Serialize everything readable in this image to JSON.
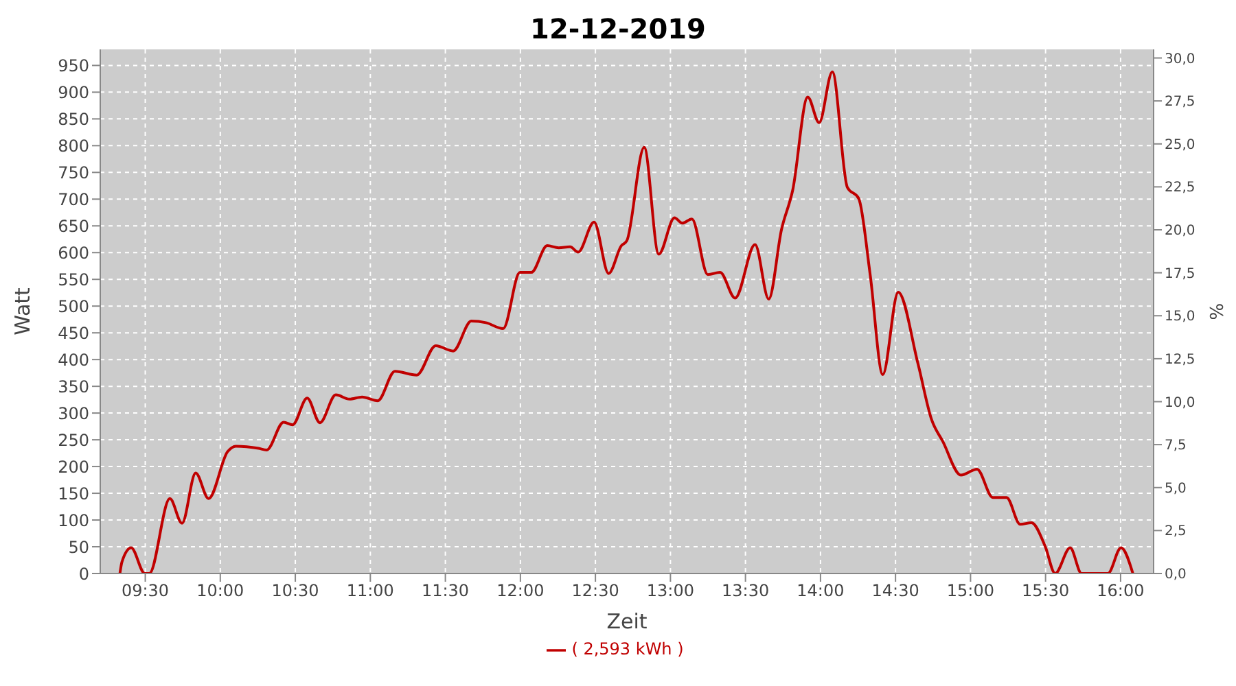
{
  "chart_data": {
    "type": "line",
    "title": "12-12-2019",
    "xlabel": "Zeit",
    "ylabel": "Watt",
    "y2label": "%",
    "x": [
      9.331,
      9.345,
      9.406,
      9.497,
      9.527,
      9.664,
      9.745,
      9.836,
      9.922,
      10.049,
      10.104,
      10.255,
      10.309,
      10.422,
      10.482,
      10.579,
      10.664,
      10.77,
      10.861,
      10.945,
      11.049,
      11.164,
      11.309,
      11.436,
      11.552,
      11.673,
      11.77,
      11.885,
      11.997,
      12.073,
      12.179,
      12.255,
      12.331,
      12.385,
      12.491,
      12.588,
      12.673,
      12.709,
      12.825,
      12.922,
      13.027,
      13.079,
      13.143,
      13.249,
      13.331,
      13.431,
      13.564,
      13.655,
      13.74,
      13.815,
      13.915,
      13.991,
      14.079,
      14.179,
      14.255,
      14.331,
      14.415,
      14.518,
      14.649,
      14.74,
      14.815,
      14.936,
      15.043,
      15.149,
      15.24,
      15.331,
      15.406,
      15.497,
      15.564,
      15.664,
      15.74,
      15.915,
      16.003,
      16.082
    ],
    "series": [
      {
        "name": "( 2,593 kWh )",
        "color": "#c00000",
        "values": [
          0,
          22,
          48,
          0,
          0,
          140,
          94,
          188,
          140,
          228,
          238,
          234,
          231,
          283,
          278,
          328,
          282,
          334,
          326,
          330,
          323,
          378,
          371,
          426,
          416,
          472,
          469,
          458,
          563,
          563,
          613,
          609,
          611,
          601,
          657,
          561,
          613,
          622,
          797,
          597,
          665,
          655,
          663,
          559,
          563,
          515,
          615,
          513,
          643,
          717,
          891,
          843,
          938,
          722,
          701,
          559,
          372,
          526,
          393,
          288,
          247,
          184,
          195,
          142,
          142,
          92,
          95,
          51,
          0,
          48,
          0,
          0,
          48,
          0
        ]
      }
    ],
    "xlim": [
      9.2,
      16.22
    ],
    "xticks": [
      {
        "value": 9.5,
        "label": "09:30"
      },
      {
        "value": 10,
        "label": "10:00"
      },
      {
        "value": 10.5,
        "label": "10:30"
      },
      {
        "value": 11,
        "label": "11:00"
      },
      {
        "value": 11.5,
        "label": "11:30"
      },
      {
        "value": 12,
        "label": "12:00"
      },
      {
        "value": 12.5,
        "label": "12:30"
      },
      {
        "value": 13,
        "label": "13:00"
      },
      {
        "value": 13.5,
        "label": "13:30"
      },
      {
        "value": 14,
        "label": "14:00"
      },
      {
        "value": 14.5,
        "label": "14:30"
      },
      {
        "value": 15,
        "label": "15:00"
      },
      {
        "value": 15.5,
        "label": "15:30"
      },
      {
        "value": 16,
        "label": "16:00"
      }
    ],
    "ylim": [
      0,
      980
    ],
    "yticks": [
      0,
      50,
      100,
      150,
      200,
      250,
      300,
      350,
      400,
      450,
      500,
      550,
      600,
      650,
      700,
      750,
      800,
      850,
      900,
      950
    ],
    "y2lim": [
      0,
      30.5
    ],
    "y2ticks": [
      {
        "value": 0,
        "label": "0,0"
      },
      {
        "value": 2.5,
        "label": "2,5"
      },
      {
        "value": 5,
        "label": "5,0"
      },
      {
        "value": 7.5,
        "label": "7,5"
      },
      {
        "value": 10,
        "label": "10,0"
      },
      {
        "value": 12.5,
        "label": "12,5"
      },
      {
        "value": 15,
        "label": "15,0"
      },
      {
        "value": 17.5,
        "label": "17,5"
      },
      {
        "value": 20,
        "label": "20,0"
      },
      {
        "value": 22.5,
        "label": "22,5"
      },
      {
        "value": 25,
        "label": "25,0"
      },
      {
        "value": 27.5,
        "label": "27,5"
      },
      {
        "value": 30,
        "label": "30,0"
      }
    ],
    "grid": true,
    "legend": "bottom"
  }
}
